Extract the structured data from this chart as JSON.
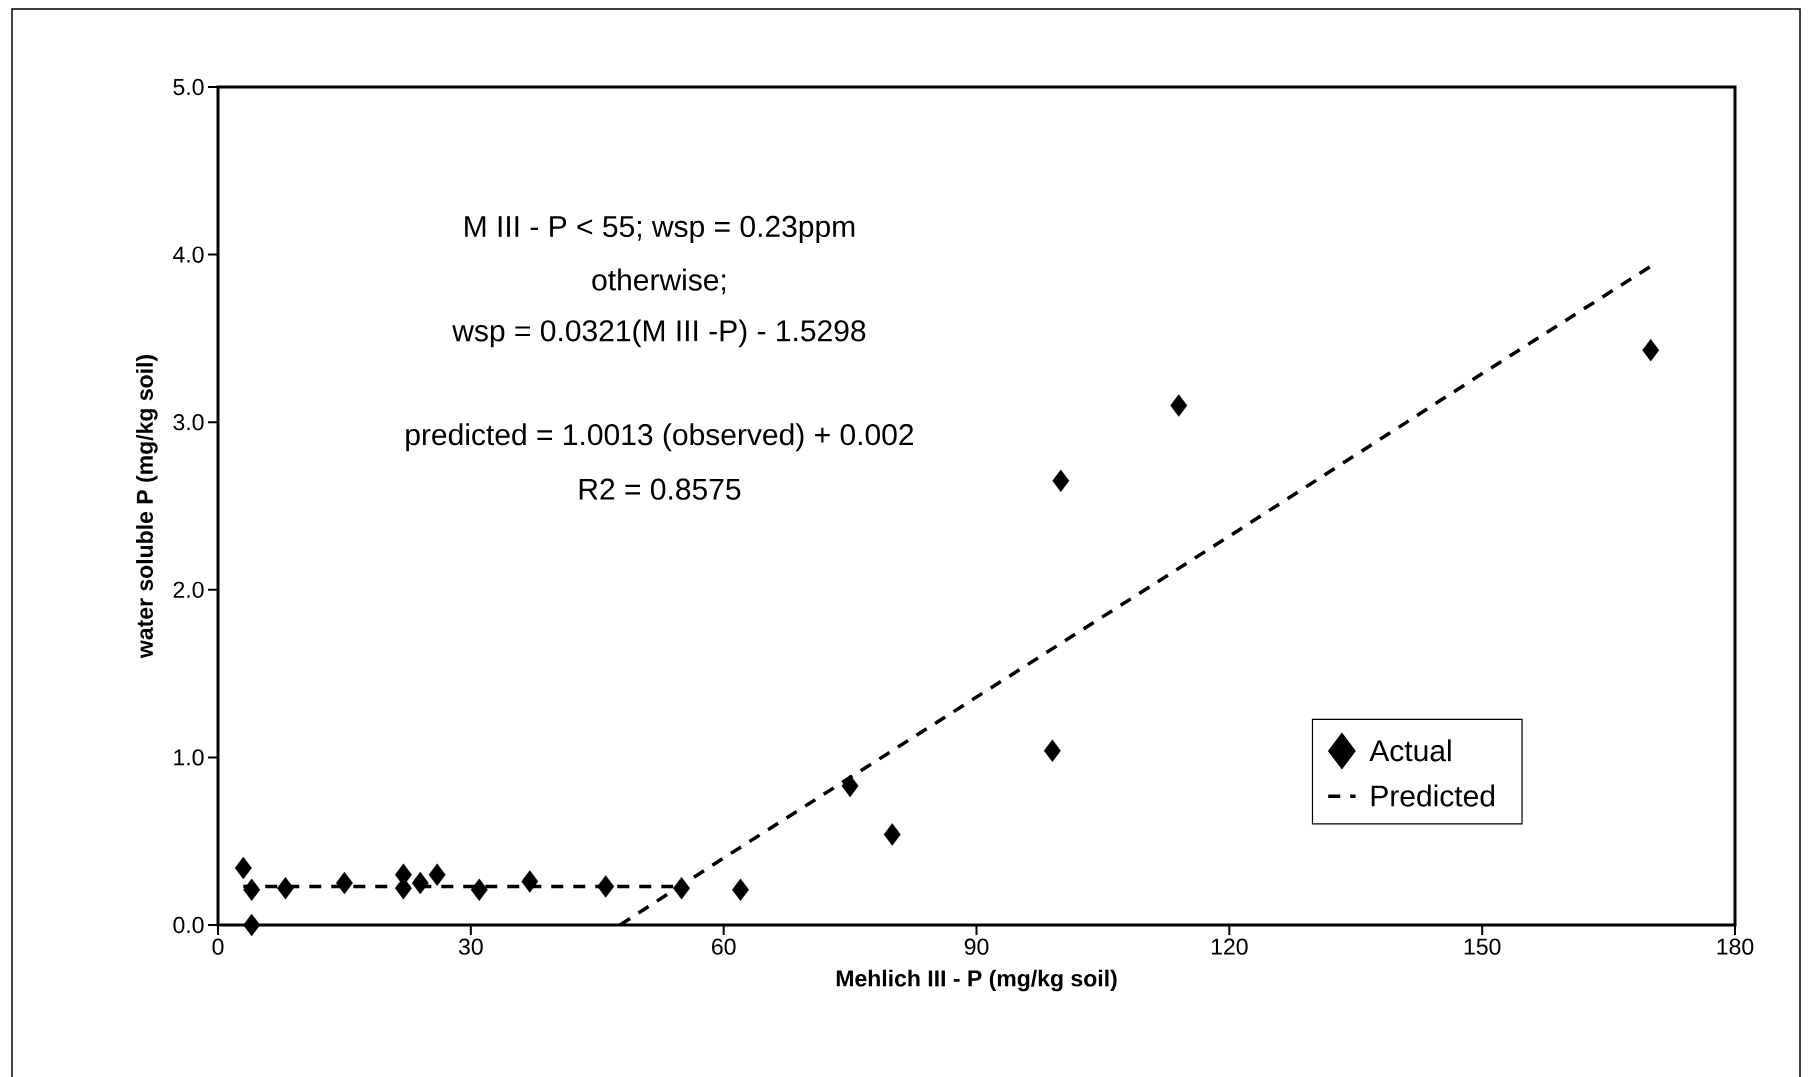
{
  "chart_data": {
    "type": "scatter",
    "xlabel": "Mehlich III - P (mg/kg soil)",
    "ylabel": "water soluble P (mg/kg soil)",
    "annotations": [
      "M III - P < 55; wsp = 0.23ppm",
      "otherwise;",
      "wsp = 0.0321(M III -P) - 1.5298",
      "predicted = 1.0013 (observed) + 0.002",
      "R2 = 0.8575"
    ],
    "series": [
      {
        "name": "Actual",
        "marker": "diamond",
        "color": "#000000",
        "x": [
          3,
          4,
          4,
          8,
          15,
          22,
          22,
          24,
          26,
          31,
          37,
          46,
          55,
          62,
          75,
          80,
          99,
          100,
          114,
          170
        ],
        "values": [
          0.34,
          0.21,
          0.0,
          0.22,
          0.25,
          0.3,
          0.22,
          0.25,
          0.3,
          0.21,
          0.26,
          0.23,
          0.22,
          0.21,
          0.83,
          0.54,
          1.04,
          2.65,
          3.1,
          3.43
        ]
      },
      {
        "name": "Predicted",
        "type": "line",
        "line_style": "dashed",
        "color": "#000000",
        "x": [
          3,
          55
        ],
        "values": [
          0.23,
          0.23
        ]
      },
      {
        "type": "line",
        "line_style": "dashed",
        "color": "#000000",
        "x": [
          47.7,
          60,
          75,
          90,
          120,
          150,
          170
        ],
        "values": [
          0.0,
          0.4,
          0.88,
          1.36,
          2.32,
          3.29,
          3.93
        ]
      }
    ],
    "xlim": [
      0,
      180
    ],
    "xticks": [
      0,
      30,
      60,
      90,
      120,
      150,
      180
    ],
    "ylim": [
      0,
      5
    ],
    "yticks": [
      {
        "value": 0,
        "label": "0.0"
      },
      {
        "value": 1,
        "label": "1.0"
      },
      {
        "value": 2,
        "label": "2.0"
      },
      {
        "value": 3,
        "label": "3.0"
      },
      {
        "value": 4,
        "label": "4.0"
      },
      {
        "value": 5,
        "label": "5.0"
      }
    ],
    "legend": "bottom right",
    "grid": false
  }
}
